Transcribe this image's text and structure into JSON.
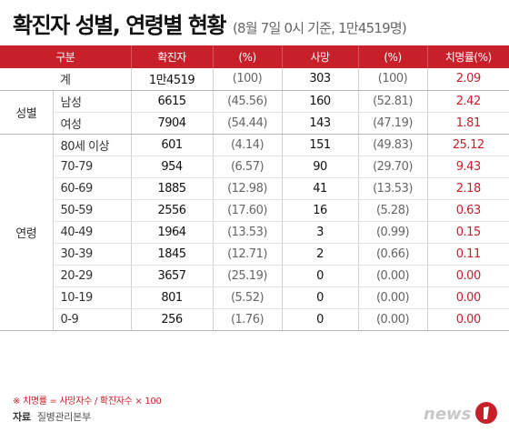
{
  "header": {
    "title": "확진자 성별, 연령별 현황",
    "subtitle": "(8월 7일 0시 기준, 1만4519명)"
  },
  "table": {
    "columns": [
      "구분",
      "",
      "확진자",
      "(%)",
      "사망",
      "(%)",
      "치명률(%)"
    ],
    "total": {
      "label": "계",
      "cases": "1만4519",
      "cases_pct": "(100)",
      "deaths": "303",
      "deaths_pct": "(100)",
      "fatality": "2.09"
    },
    "sex_group": "성별",
    "sex": [
      {
        "label": "남성",
        "cases": "6615",
        "cases_pct": "(45.56)",
        "deaths": "160",
        "deaths_pct": "(52.81)",
        "fatality": "2.42"
      },
      {
        "label": "여성",
        "cases": "7904",
        "cases_pct": "(54.44)",
        "deaths": "143",
        "deaths_pct": "(47.19)",
        "fatality": "1.81"
      }
    ],
    "age_group": "연령",
    "age": [
      {
        "label": "80세 이상",
        "cases": "601",
        "cases_pct": "(4.14)",
        "deaths": "151",
        "deaths_pct": "(49.83)",
        "fatality": "25.12"
      },
      {
        "label": "70-79",
        "cases": "954",
        "cases_pct": "(6.57)",
        "deaths": "90",
        "deaths_pct": "(29.70)",
        "fatality": "9.43"
      },
      {
        "label": "60-69",
        "cases": "1885",
        "cases_pct": "(12.98)",
        "deaths": "41",
        "deaths_pct": "(13.53)",
        "fatality": "2.18"
      },
      {
        "label": "50-59",
        "cases": "2556",
        "cases_pct": "(17.60)",
        "deaths": "16",
        "deaths_pct": "(5.28)",
        "fatality": "0.63"
      },
      {
        "label": "40-49",
        "cases": "1964",
        "cases_pct": "(13.53)",
        "deaths": "3",
        "deaths_pct": "(0.99)",
        "fatality": "0.15"
      },
      {
        "label": "30-39",
        "cases": "1845",
        "cases_pct": "(12.71)",
        "deaths": "2",
        "deaths_pct": "(0.66)",
        "fatality": "0.11"
      },
      {
        "label": "20-29",
        "cases": "3657",
        "cases_pct": "(25.19)",
        "deaths": "0",
        "deaths_pct": "(0.00)",
        "fatality": "0.00"
      },
      {
        "label": "10-19",
        "cases": "801",
        "cases_pct": "(5.52)",
        "deaths": "0",
        "deaths_pct": "(0.00)",
        "fatality": "0.00"
      },
      {
        "label": "0-9",
        "cases": "256",
        "cases_pct": "(1.76)",
        "deaths": "0",
        "deaths_pct": "(0.00)",
        "fatality": "0.00"
      }
    ]
  },
  "footnote": "※ 치명률 = 사망자수 / 확진자수 × 100",
  "source": {
    "label": "자료",
    "value": "질병관리본부"
  },
  "logo": {
    "text": "news1",
    "accent_color": "#c8202a"
  },
  "colors": {
    "header_bg": "#c8202a",
    "rate_text": "#c8202a"
  }
}
